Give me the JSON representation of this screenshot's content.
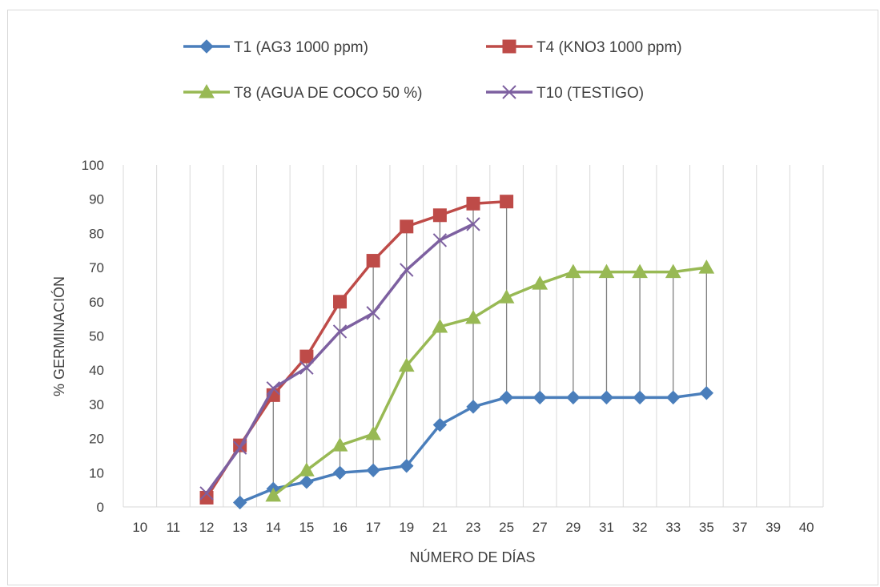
{
  "chart_data": {
    "type": "line",
    "title": "",
    "xlabel": "NÚMERO DE DÍAS",
    "ylabel": "% GERMINACIÓN",
    "ylim": [
      0,
      100
    ],
    "yticks": [
      "0",
      "10",
      "20",
      "30",
      "40",
      "50",
      "60",
      "70",
      "80",
      "90",
      "100"
    ],
    "categories": [
      "10",
      "11",
      "12",
      "13",
      "14",
      "15",
      "16",
      "17",
      "19",
      "21",
      "23",
      "25",
      "27",
      "29",
      "31",
      "32",
      "33",
      "35",
      "37",
      "39",
      "40"
    ],
    "drop_lines": true,
    "grid": "vertical",
    "legend_position": "top",
    "series": [
      {
        "name": "T1 (AG3 1000 ppm)",
        "color": "#4a7ebb",
        "marker": "diamond",
        "values": [
          null,
          null,
          null,
          1.3,
          5.3,
          7.3,
          10,
          10.7,
          12,
          24,
          29.3,
          32,
          32,
          32,
          32,
          32,
          32,
          33.3,
          null,
          null,
          null
        ]
      },
      {
        "name": "T4 (KNO3 1000 ppm)",
        "color": "#be4b48",
        "marker": "square",
        "values": [
          null,
          null,
          2.7,
          18,
          32.7,
          44,
          60,
          72,
          82,
          85.3,
          88.7,
          89.3,
          null,
          null,
          null,
          null,
          null,
          null,
          null,
          null,
          null
        ]
      },
      {
        "name": "T8 (AGUA DE COCO 50 %)",
        "color": "#98b954",
        "marker": "triangle",
        "values": [
          null,
          null,
          null,
          null,
          3.3,
          10.7,
          18,
          21.3,
          41.3,
          52.7,
          55.3,
          61.3,
          65.3,
          68.7,
          68.7,
          68.7,
          68.7,
          70,
          null,
          null,
          null
        ]
      },
      {
        "name": "T10 (TESTIGO)",
        "color": "#7d60a0",
        "marker": "x",
        "values": [
          null,
          null,
          4,
          17.3,
          34.7,
          40.7,
          51.3,
          56.7,
          69.3,
          78,
          82.7,
          null,
          null,
          null,
          null,
          null,
          null,
          null,
          null,
          null,
          null
        ]
      }
    ]
  }
}
